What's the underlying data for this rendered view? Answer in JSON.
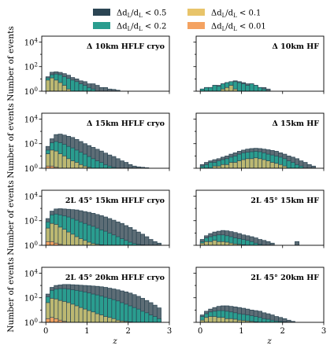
{
  "chart_data": {
    "type": "bar",
    "layout": "4 rows x 2 columns of histograms, shared x and y axes",
    "xlabel": "z",
    "ylabel": "Number of events",
    "x_ticks": [
      "0",
      "1",
      "2",
      "3"
    ],
    "xlim": [
      -0.1,
      3.0
    ],
    "y_scale": "log",
    "y_ticks": [
      "10^0",
      "10^2",
      "10^4"
    ],
    "ylim": [
      1,
      30000
    ],
    "grid": false,
    "bins": [
      0.05,
      0.15,
      0.25,
      0.35,
      0.45,
      0.55,
      0.65,
      0.75,
      0.85,
      0.95,
      1.05,
      1.15,
      1.25,
      1.35,
      1.45,
      1.55,
      1.65,
      1.75,
      1.85,
      1.95,
      2.05,
      2.15,
      2.25,
      2.35,
      2.45,
      2.55,
      2.65,
      2.75
    ],
    "legend": {
      "position": "top",
      "entries": [
        {
          "text": "Δd_L/d_L < 0.5",
          "color": "#2b4553"
        },
        {
          "text": "Δd_L/d_L < 0.1",
          "color": "#e8c46a"
        },
        {
          "text": "Δd_L/d_L < 0.2",
          "color": "#2a9d8f"
        },
        {
          "text": "Δd_L/d_L < 0.01",
          "color": "#f4a261"
        }
      ]
    },
    "colors": {
      "s05_fill": "#5d6d76",
      "s05_line": "#2b4553",
      "s02": "#2a9d8f",
      "s01": "#bcb872",
      "s001": "#f4a261"
    },
    "panels": [
      {
        "title": "Δ 10km HFLF cryo",
        "row": 0,
        "col": 0,
        "series": {
          "s05": [
            15,
            35,
            38,
            34,
            27,
            20,
            13,
            10,
            7,
            6,
            4,
            4,
            3,
            2,
            2,
            1.5,
            1.4,
            1.2,
            1,
            1,
            1,
            1,
            1,
            1,
            1,
            1,
            1,
            1
          ],
          "s02": [
            12,
            22,
            25,
            22,
            15,
            11,
            8,
            6,
            4,
            3,
            2,
            1.5,
            1,
            1,
            1,
            1,
            1,
            1,
            1,
            1,
            1,
            1,
            1,
            1,
            1,
            1,
            1,
            1
          ],
          "s01": [
            8,
            12,
            8,
            5,
            3,
            1.5,
            1,
            1,
            1,
            1,
            1,
            1,
            1,
            1,
            1,
            1,
            1,
            1,
            1,
            1,
            1,
            1,
            1,
            1,
            1,
            1,
            1,
            1
          ],
          "s001": [
            1,
            1,
            1,
            1,
            1,
            1,
            1,
            1,
            1,
            1,
            1,
            1,
            1,
            1,
            1,
            1,
            1,
            1,
            1,
            1,
            1,
            1,
            1,
            1,
            1,
            1,
            1,
            1
          ]
        }
      },
      {
        "title": "Δ 10km HF",
        "row": 0,
        "col": 1,
        "series": {
          "s05": [
            1.5,
            2,
            2,
            3,
            3,
            4,
            5,
            6,
            7,
            6,
            5,
            4,
            4,
            3,
            2,
            2,
            1.5,
            1,
            1,
            1,
            1,
            1,
            1,
            1,
            1,
            1,
            1,
            1
          ],
          "s02": [
            1.5,
            2,
            2,
            3,
            2.5,
            4,
            5,
            6,
            6,
            5,
            4,
            3,
            4,
            3,
            2,
            1.5,
            1,
            1,
            1,
            1,
            1,
            1,
            1,
            1,
            1,
            1,
            1,
            1
          ],
          "s01": [
            1,
            1,
            1,
            1,
            1,
            1.5,
            2,
            3,
            1.5,
            1,
            1,
            1,
            1,
            1,
            1,
            1,
            1,
            1,
            1,
            1,
            1,
            1,
            1,
            1,
            1,
            1,
            1,
            1
          ],
          "s001": [
            1,
            1,
            1,
            1,
            1,
            1,
            1,
            1,
            1,
            1,
            1,
            1,
            1,
            1,
            1,
            1,
            1,
            1,
            1,
            1,
            1,
            1,
            1,
            1,
            1,
            1,
            1,
            1
          ]
        }
      },
      {
        "title": "Δ 15km HFLF cryo",
        "row": 1,
        "col": 0,
        "series": {
          "s05": [
            60,
            250,
            550,
            600,
            500,
            400,
            320,
            220,
            150,
            100,
            70,
            50,
            35,
            25,
            17,
            12,
            9,
            6,
            4,
            3,
            2,
            1.5,
            1.3,
            1.2,
            1.1,
            1,
            1,
            1
          ],
          "s02": [
            30,
            120,
            150,
            120,
            90,
            60,
            45,
            30,
            20,
            14,
            9,
            6,
            4,
            3,
            2,
            1.5,
            1.2,
            1,
            1,
            1,
            1,
            1,
            1,
            1,
            1,
            1,
            1,
            1
          ],
          "s01": [
            15,
            30,
            25,
            15,
            10,
            6,
            4,
            3,
            2,
            1.5,
            1.2,
            1,
            1,
            1,
            1,
            1,
            1,
            1,
            1,
            1,
            1,
            1,
            1,
            1,
            1,
            1,
            1,
            1
          ],
          "s001": [
            1.5,
            1.5,
            1.2,
            1,
            1,
            1,
            1,
            1,
            1,
            1,
            1,
            1,
            1,
            1,
            1,
            1,
            1,
            1,
            1,
            1,
            1,
            1,
            1,
            1,
            1,
            1,
            1,
            1
          ]
        }
      },
      {
        "title": "Δ 15km HF",
        "row": 1,
        "col": 1,
        "series": {
          "s05": [
            2,
            3,
            4,
            5,
            6,
            8,
            10,
            14,
            18,
            24,
            30,
            36,
            40,
            42,
            40,
            36,
            32,
            28,
            24,
            18,
            14,
            10,
            8,
            6,
            4,
            3,
            2,
            1.5
          ],
          "s02": [
            1.5,
            2,
            3,
            3,
            4,
            5,
            6,
            8,
            10,
            14,
            18,
            20,
            22,
            24,
            22,
            18,
            14,
            12,
            10,
            8,
            6,
            4,
            3,
            2,
            1.5,
            1,
            1,
            1
          ],
          "s01": [
            1,
            1,
            1,
            1.5,
            1.5,
            2,
            2,
            3,
            3,
            4,
            5,
            6,
            6,
            7,
            6,
            5,
            4,
            3,
            2.5,
            2,
            1.5,
            1,
            1,
            1,
            1,
            1,
            1,
            1
          ],
          "s001": [
            1,
            1,
            1,
            1,
            1,
            1,
            1,
            1,
            1,
            1,
            1,
            1,
            1,
            1,
            1,
            1,
            1,
            1,
            1,
            1,
            1,
            1,
            1,
            1,
            1,
            1,
            1,
            1
          ]
        }
      },
      {
        "title": "2L 45° 15km HFLF cryo",
        "row": 2,
        "col": 0,
        "series": {
          "s05": [
            150,
            600,
            900,
            950,
            900,
            850,
            800,
            750,
            650,
            550,
            480,
            400,
            320,
            260,
            200,
            150,
            110,
            80,
            60,
            40,
            28,
            18,
            12,
            8,
            5,
            3,
            2,
            1.5
          ],
          "s02": [
            80,
            300,
            350,
            300,
            250,
            200,
            150,
            110,
            80,
            60,
            45,
            35,
            25,
            18,
            14,
            10,
            7,
            5,
            3.5,
            2.5,
            1.8,
            1.4,
            1.2,
            1.1,
            1,
            1,
            1,
            1
          ],
          "s01": [
            25,
            60,
            50,
            30,
            20,
            12,
            8,
            5,
            3.5,
            2.5,
            1.8,
            1.4,
            1.2,
            1.1,
            1,
            1,
            1,
            1,
            1,
            1,
            1,
            1,
            1,
            1,
            1,
            1,
            1,
            1
          ],
          "s001": [
            2,
            2,
            1.5,
            1.2,
            1,
            1,
            1,
            1,
            1,
            1,
            1,
            1,
            1,
            1,
            1,
            1,
            1,
            1,
            1,
            1,
            1,
            1,
            1,
            1,
            1,
            1,
            1,
            1
          ]
        }
      },
      {
        "title": "2L 45° 15km HF",
        "row": 2,
        "col": 1,
        "series": {
          "s05": [
            3,
            6,
            9,
            12,
            14,
            16,
            15,
            13,
            11,
            9,
            7,
            6,
            5,
            4,
            3,
            2.5,
            2,
            1.5,
            1,
            1,
            1,
            1,
            1,
            2,
            1,
            1,
            1,
            1
          ],
          "s02": [
            2,
            4,
            5,
            6,
            7,
            7,
            6,
            5,
            4,
            3.5,
            3,
            2.5,
            2,
            1.5,
            1.2,
            1,
            1,
            1,
            1,
            1,
            1,
            1,
            1,
            1,
            1,
            1,
            1,
            1
          ],
          "s01": [
            1.5,
            2,
            2,
            2.5,
            2,
            2,
            1.8,
            1.5,
            1.3,
            1.2,
            1.1,
            1,
            1,
            1,
            1,
            1,
            1,
            1,
            1,
            1,
            1,
            1,
            1,
            1,
            1,
            1,
            1,
            1
          ],
          "s001": [
            1,
            1,
            1,
            1,
            1,
            1,
            1,
            1,
            1,
            1,
            1,
            1,
            1,
            1,
            1,
            1,
            1,
            1,
            1,
            1,
            1,
            1,
            1,
            1,
            1,
            1,
            1,
            1
          ]
        }
      },
      {
        "title": "2L 45° 20km HFLF cryo",
        "row": 3,
        "col": 0,
        "series": {
          "s05": [
            200,
            700,
            1000,
            1100,
            1200,
            1200,
            1150,
            1100,
            1050,
            1000,
            950,
            900,
            850,
            780,
            700,
            600,
            520,
            440,
            360,
            300,
            240,
            180,
            130,
            90,
            60,
            40,
            25,
            15
          ],
          "s02": [
            120,
            400,
            500,
            550,
            550,
            500,
            450,
            400,
            350,
            300,
            250,
            200,
            170,
            140,
            110,
            90,
            70,
            55,
            40,
            30,
            22,
            16,
            12,
            8,
            6,
            4,
            3,
            2
          ],
          "s01": [
            40,
            90,
            80,
            60,
            50,
            40,
            30,
            22,
            16,
            12,
            9,
            7,
            5,
            4,
            3,
            2.5,
            2,
            1.5,
            1.3,
            1.2,
            1.1,
            1,
            1,
            1,
            1,
            1,
            1,
            1
          ],
          "s001": [
            2,
            2.5,
            2,
            1.5,
            1.2,
            1,
            1,
            1,
            1,
            1,
            1,
            1,
            1,
            1,
            1,
            1,
            1,
            1,
            1,
            1,
            1,
            1,
            1,
            1,
            1,
            1,
            1,
            1
          ]
        }
      },
      {
        "title": "2L 45° 20km HF",
        "row": 3,
        "col": 1,
        "series": {
          "s05": [
            4,
            8,
            12,
            16,
            20,
            22,
            22,
            20,
            18,
            16,
            14,
            12,
            10,
            9,
            8,
            6,
            5,
            4,
            3,
            2.5,
            2,
            1.5,
            1.2,
            1,
            1,
            1,
            1,
            1
          ],
          "s02": [
            3,
            5,
            7,
            8,
            9,
            9,
            8,
            7,
            6,
            5,
            4.5,
            4,
            3.5,
            3,
            2.5,
            2,
            1.8,
            1.5,
            1.3,
            1.2,
            1.1,
            1,
            1,
            1,
            1,
            1,
            1,
            1
          ],
          "s01": [
            1.5,
            2.5,
            3,
            3,
            2.5,
            2.5,
            2,
            2,
            1.8,
            1.5,
            1.4,
            1.3,
            1.2,
            1.1,
            1,
            1,
            1,
            1,
            1,
            1,
            1,
            1,
            1,
            1,
            1,
            1,
            1,
            1
          ],
          "s001": [
            1,
            1,
            1,
            1,
            1,
            1,
            1,
            1,
            1,
            1,
            1,
            1,
            1,
            1,
            1,
            1,
            1,
            1,
            1,
            1,
            1,
            1,
            1,
            1,
            1,
            1,
            1,
            1
          ]
        }
      }
    ]
  }
}
